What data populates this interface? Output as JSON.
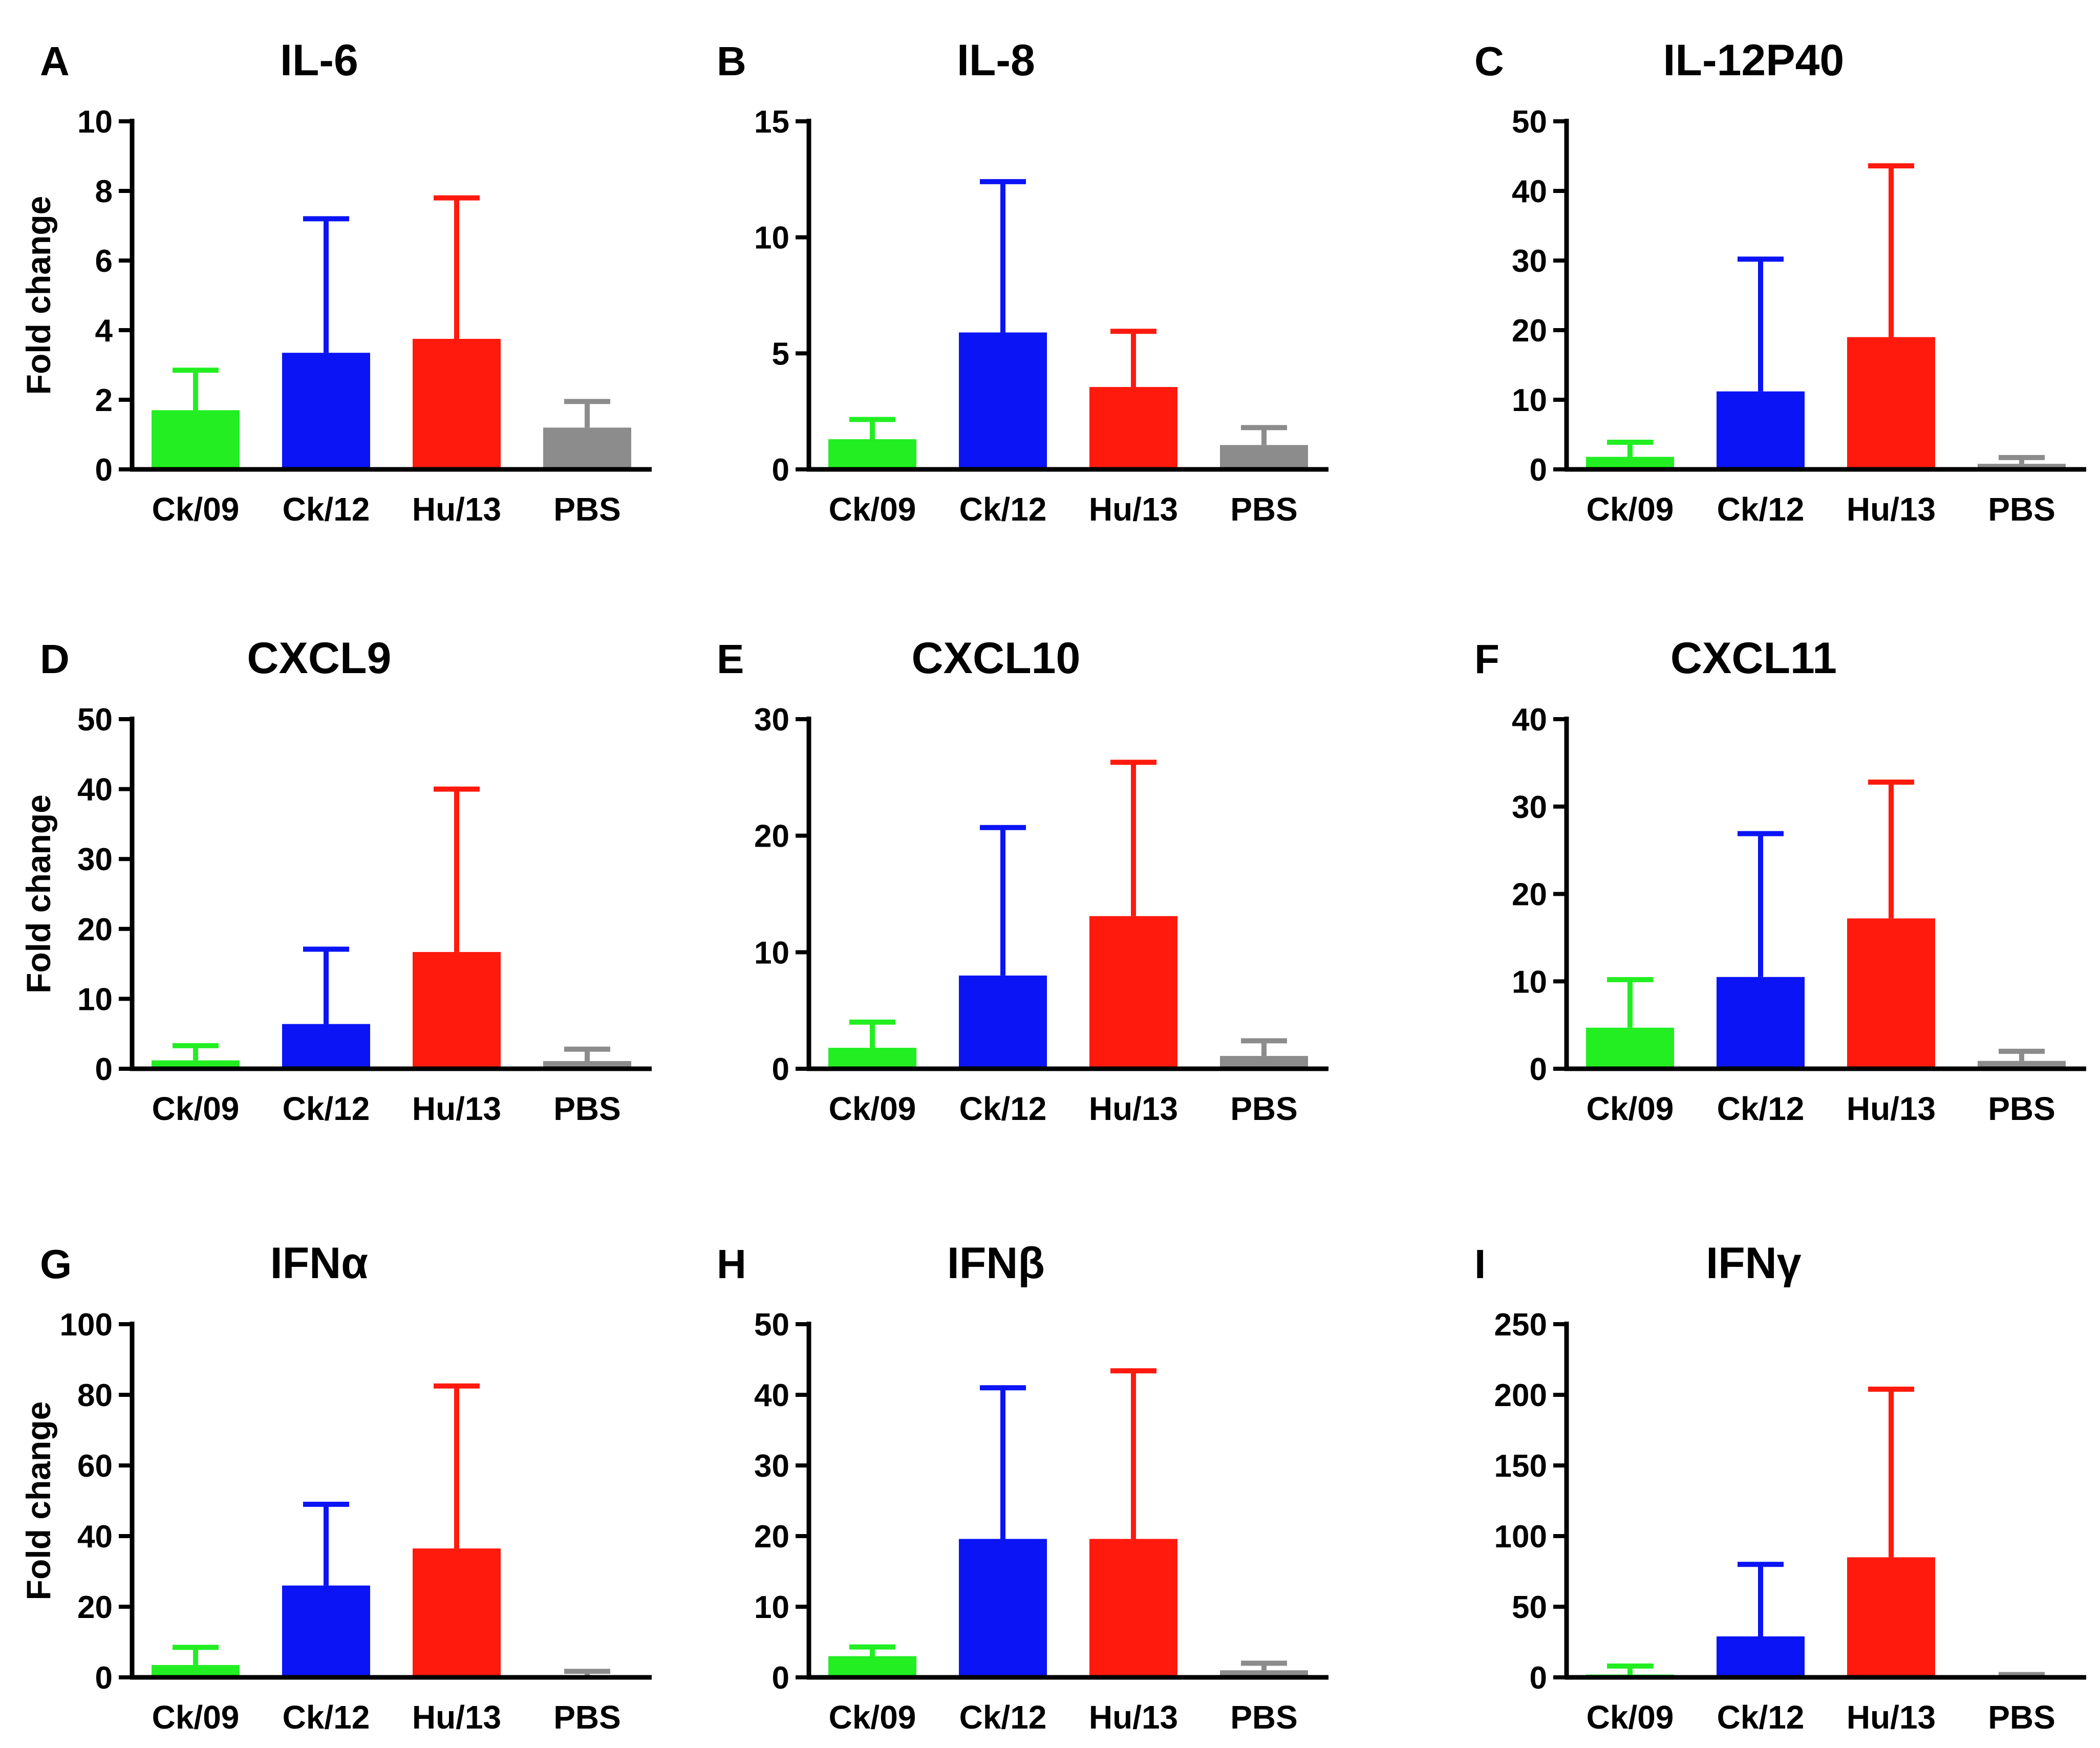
{
  "figure": {
    "categories": [
      "Ck/09",
      "Ck/12",
      "Hu/13",
      "PBS"
    ],
    "colors": {
      "Ck/09": "#22EE22",
      "Ck/12": "#0A14F5",
      "Hu/13": "#FF1A0D",
      "PBS": "#8C8C8C"
    },
    "ylabel": "Fold change"
  },
  "chart_data": [
    {
      "type": "bar",
      "panel": "A",
      "title": "IL-6",
      "ylabel": "Fold change",
      "categories": [
        "Ck/09",
        "Ck/12",
        "Hu/13",
        "PBS"
      ],
      "values": [
        1.7,
        3.35,
        3.75,
        1.2
      ],
      "error": [
        1.15,
        3.85,
        4.05,
        0.75
      ],
      "ylim": [
        0,
        10
      ],
      "ticks": [
        0,
        2,
        4,
        6,
        8,
        10
      ]
    },
    {
      "type": "bar",
      "panel": "B",
      "title": "IL-8",
      "ylabel": "",
      "categories": [
        "Ck/09",
        "Ck/12",
        "Hu/13",
        "PBS"
      ],
      "values": [
        1.3,
        5.9,
        3.55,
        1.05
      ],
      "error": [
        0.85,
        6.5,
        2.4,
        0.75
      ],
      "ylim": [
        0,
        15
      ],
      "ticks": [
        0,
        5,
        10,
        15
      ]
    },
    {
      "type": "bar",
      "panel": "C",
      "title": "IL-12P40",
      "ylabel": "",
      "categories": [
        "Ck/09",
        "Ck/12",
        "Hu/13",
        "PBS"
      ],
      "values": [
        1.8,
        11.2,
        19.0,
        0.8
      ],
      "error": [
        2.1,
        19.0,
        24.6,
        0.9
      ],
      "ylim": [
        0,
        50
      ],
      "ticks": [
        0,
        10,
        20,
        30,
        40,
        50
      ]
    },
    {
      "type": "bar",
      "panel": "D",
      "title": "CXCL9",
      "ylabel": "Fold change",
      "categories": [
        "Ck/09",
        "Ck/12",
        "Hu/13",
        "PBS"
      ],
      "values": [
        1.2,
        6.4,
        16.7,
        1.1
      ],
      "error": [
        2.1,
        10.7,
        23.3,
        1.7
      ],
      "ylim": [
        0,
        50
      ],
      "ticks": [
        0,
        10,
        20,
        30,
        40,
        50
      ]
    },
    {
      "type": "bar",
      "panel": "E",
      "title": "CXCL10",
      "ylabel": "",
      "categories": [
        "Ck/09",
        "Ck/12",
        "Hu/13",
        "PBS"
      ],
      "values": [
        1.8,
        8.0,
        13.1,
        1.1
      ],
      "error": [
        2.2,
        12.7,
        13.2,
        1.3
      ],
      "ylim": [
        0,
        30
      ],
      "ticks": [
        0,
        10,
        20,
        30
      ]
    },
    {
      "type": "bar",
      "panel": "F",
      "title": "CXCL11",
      "ylabel": "",
      "categories": [
        "Ck/09",
        "Ck/12",
        "Hu/13",
        "PBS"
      ],
      "values": [
        4.7,
        10.5,
        17.2,
        0.9
      ],
      "error": [
        5.5,
        16.4,
        15.6,
        1.1
      ],
      "ylim": [
        0,
        40
      ],
      "ticks": [
        0,
        10,
        20,
        30,
        40
      ]
    },
    {
      "type": "bar",
      "panel": "G",
      "title": "IFNα",
      "ylabel": "Fold change",
      "categories": [
        "Ck/09",
        "Ck/12",
        "Hu/13",
        "PBS"
      ],
      "values": [
        3.5,
        26.0,
        36.5,
        0.5
      ],
      "error": [
        5.0,
        23.0,
        46.0,
        1.2
      ],
      "ylim": [
        0,
        100
      ],
      "ticks": [
        0,
        20,
        40,
        60,
        80,
        100
      ]
    },
    {
      "type": "bar",
      "panel": "H",
      "title": "IFNβ",
      "ylabel": "",
      "categories": [
        "Ck/09",
        "Ck/12",
        "Hu/13",
        "PBS"
      ],
      "values": [
        3.0,
        19.6,
        19.6,
        1.0
      ],
      "error": [
        1.3,
        21.4,
        23.8,
        1.0
      ],
      "ylim": [
        0,
        50
      ],
      "ticks": [
        0,
        10,
        20,
        30,
        40,
        50
      ]
    },
    {
      "type": "bar",
      "panel": "I",
      "title": "IFNγ",
      "ylabel": "",
      "categories": [
        "Ck/09",
        "Ck/12",
        "Hu/13",
        "PBS"
      ],
      "values": [
        2.0,
        29.0,
        85.0,
        0.5
      ],
      "error": [
        6.0,
        51.0,
        119.0,
        1.5
      ],
      "ylim": [
        0,
        250
      ],
      "ticks": [
        0,
        50,
        100,
        150,
        200,
        250
      ]
    }
  ]
}
